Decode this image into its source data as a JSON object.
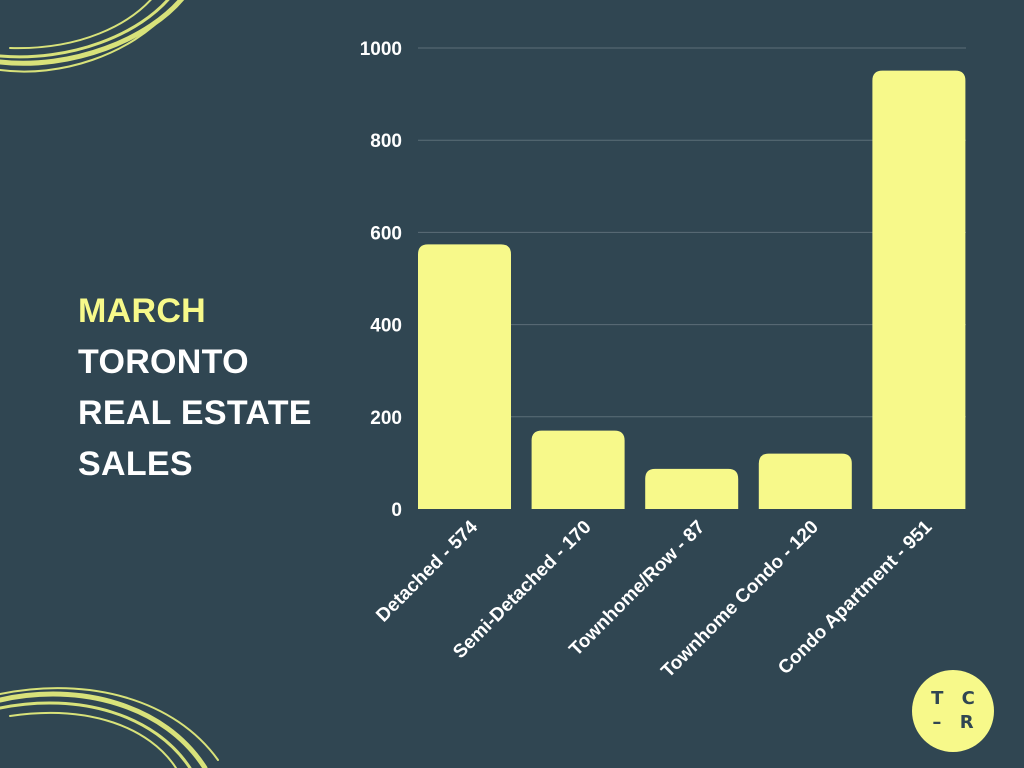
{
  "heading": {
    "line1": "MARCH",
    "line2": "TORONTO",
    "line3": "REAL ESTATE",
    "line4": "SALES"
  },
  "logo": {
    "line1": "T C",
    "line2": "– R"
  },
  "colors": {
    "background": "#304652",
    "bar": "#f7f98a",
    "accent": "#f7f98a",
    "text": "#ffffff",
    "grid": "#5b6e78"
  },
  "chart_data": {
    "type": "bar",
    "categories": [
      "Detached - 574",
      "Semi-Detached - 170",
      "Townhome/Row - 87",
      "Townhome Condo - 120",
      "Condo Apartment - 951"
    ],
    "values": [
      574,
      170,
      87,
      120,
      951
    ],
    "ylim": [
      0,
      1000
    ],
    "yticks": [
      "0",
      "200",
      "400",
      "600",
      "800",
      "1000"
    ],
    "grid": true,
    "legend": "none"
  }
}
